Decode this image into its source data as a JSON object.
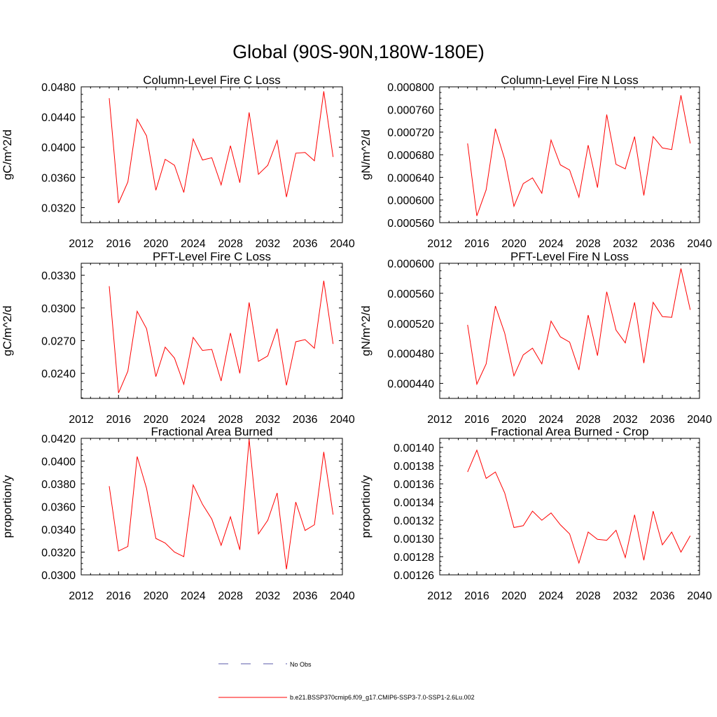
{
  "figure": {
    "title": "Global (90S-90N,180W-180E)"
  },
  "legend": {
    "items": [
      {
        "label": "No Obs",
        "color": "#5a5aa8",
        "style": "dashed"
      },
      {
        "label": "b.e21.BSSP370cmip6.f09_g17.CMIP6-SSP3-7.0-SSP1-2.6Lu.002",
        "color": "#ff0000",
        "style": "solid"
      }
    ]
  },
  "chart_data": [
    {
      "type": "line",
      "title": "Column-Level Fire C Loss",
      "xlabel": "",
      "ylabel": "gC/m^2/d",
      "xlim": [
        2012,
        2040
      ],
      "ylim": [
        0.03,
        0.048
      ],
      "xticks": [
        2012,
        2016,
        2020,
        2024,
        2028,
        2032,
        2036,
        2040
      ],
      "xtick_labels": [
        "2012",
        "2016",
        "2020",
        "2024",
        "2028",
        "2032",
        "2036",
        "2040"
      ],
      "yticks": [
        0.032,
        0.036,
        0.04,
        0.044,
        0.048
      ],
      "ytick_labels": [
        "0.0320",
        "0.0360",
        "0.0400",
        "0.0440",
        "0.0480"
      ],
      "series": [
        {
          "color": "#ff0000",
          "x": [
            2015,
            2016,
            2017,
            2018,
            2019,
            2020,
            2021,
            2022,
            2023,
            2024,
            2025,
            2026,
            2027,
            2028,
            2029,
            2030,
            2031,
            2032,
            2033,
            2034,
            2035,
            2036,
            2037,
            2038,
            2039
          ],
          "y": [
            0.0465,
            0.0326,
            0.0354,
            0.0437,
            0.0415,
            0.0343,
            0.0384,
            0.0376,
            0.034,
            0.0411,
            0.0383,
            0.0386,
            0.035,
            0.0402,
            0.0353,
            0.0446,
            0.0364,
            0.0376,
            0.0409,
            0.0334,
            0.0392,
            0.0393,
            0.0382,
            0.0474,
            0.0387
          ]
        }
      ]
    },
    {
      "type": "line",
      "title": "Column-Level Fire N Loss",
      "xlabel": "",
      "ylabel": "gN/m^2/d",
      "xlim": [
        2012,
        2040
      ],
      "ylim": [
        0.00056,
        0.0008
      ],
      "xticks": [
        2012,
        2016,
        2020,
        2024,
        2028,
        2032,
        2036,
        2040
      ],
      "xtick_labels": [
        "2012",
        "2016",
        "2020",
        "2024",
        "2028",
        "2032",
        "2036",
        "2040"
      ],
      "yticks": [
        0.00056,
        0.0006,
        0.00064,
        0.00068,
        0.00072,
        0.00076,
        0.0008
      ],
      "ytick_labels": [
        "0.000560",
        "0.000600",
        "0.000640",
        "0.000680",
        "0.000720",
        "0.000760",
        "0.000800"
      ],
      "series": [
        {
          "color": "#ff0000",
          "x": [
            2015,
            2016,
            2017,
            2018,
            2019,
            2020,
            2021,
            2022,
            2023,
            2024,
            2025,
            2026,
            2027,
            2028,
            2029,
            2030,
            2031,
            2032,
            2033,
            2034,
            2035,
            2036,
            2037,
            2038,
            2039
          ],
          "y": [
            0.0007,
            0.000572,
            0.000618,
            0.000726,
            0.000672,
            0.000589,
            0.000629,
            0.000639,
            0.000612,
            0.000706,
            0.000662,
            0.000653,
            0.000605,
            0.000697,
            0.000622,
            0.000751,
            0.000663,
            0.000655,
            0.000712,
            0.000608,
            0.000712,
            0.000692,
            0.000689,
            0.000785,
            0.0007
          ]
        }
      ]
    },
    {
      "type": "line",
      "title": "PFT-Level Fire C Loss",
      "xlabel": "",
      "ylabel": "gC/m^2/d",
      "xlim": [
        2012,
        2040
      ],
      "ylim": [
        0.0217,
        0.0341
      ],
      "xticks": [
        2012,
        2016,
        2020,
        2024,
        2028,
        2032,
        2036,
        2040
      ],
      "xtick_labels": [
        "2012",
        "2016",
        "2020",
        "2024",
        "2028",
        "2032",
        "2036",
        "2040"
      ],
      "yticks": [
        0.024,
        0.027,
        0.03,
        0.033
      ],
      "ytick_labels": [
        "0.0240",
        "0.0270",
        "0.0300",
        "0.0330"
      ],
      "series": [
        {
          "color": "#ff0000",
          "x": [
            2015,
            2016,
            2017,
            2018,
            2019,
            2020,
            2021,
            2022,
            2023,
            2024,
            2025,
            2026,
            2027,
            2028,
            2029,
            2030,
            2031,
            2032,
            2033,
            2034,
            2035,
            2036,
            2037,
            2038,
            2039
          ],
          "y": [
            0.032,
            0.0222,
            0.0242,
            0.0297,
            0.0281,
            0.0237,
            0.0264,
            0.0254,
            0.023,
            0.0273,
            0.0261,
            0.0262,
            0.0233,
            0.0277,
            0.024,
            0.0305,
            0.0251,
            0.0256,
            0.0281,
            0.0229,
            0.0269,
            0.0271,
            0.0263,
            0.0325,
            0.0267
          ]
        }
      ]
    },
    {
      "type": "line",
      "title": "PFT-Level Fire N Loss",
      "xlabel": "",
      "ylabel": "gN/m^2/d",
      "xlim": [
        2012,
        2040
      ],
      "ylim": [
        0.00042,
        0.0006
      ],
      "xticks": [
        2012,
        2016,
        2020,
        2024,
        2028,
        2032,
        2036,
        2040
      ],
      "xtick_labels": [
        "2012",
        "2016",
        "2020",
        "2024",
        "2028",
        "2032",
        "2036",
        "2040"
      ],
      "yticks": [
        0.00044,
        0.00048,
        0.00052,
        0.00056,
        0.0006
      ],
      "ytick_labels": [
        "0.000440",
        "0.000480",
        "0.000520",
        "0.000560",
        "0.000600"
      ],
      "series": [
        {
          "color": "#ff0000",
          "x": [
            2015,
            2016,
            2017,
            2018,
            2019,
            2020,
            2021,
            2022,
            2023,
            2024,
            2025,
            2026,
            2027,
            2028,
            2029,
            2030,
            2031,
            2032,
            2033,
            2034,
            2035,
            2036,
            2037,
            2038,
            2039
          ],
          "y": [
            0.000518,
            0.000439,
            0.000466,
            0.000543,
            0.000507,
            0.00045,
            0.000478,
            0.000487,
            0.000466,
            0.000523,
            0.000502,
            0.000495,
            0.000458,
            0.000531,
            0.000477,
            0.000562,
            0.000511,
            0.000494,
            0.000548,
            0.000467,
            0.000548,
            0.000529,
            0.000528,
            0.000593,
            0.000538
          ]
        }
      ]
    },
    {
      "type": "line",
      "title": "Fractional Area Burned",
      "xlabel": "",
      "ylabel": "proportion/y",
      "xlim": [
        2012,
        2040
      ],
      "ylim": [
        0.03,
        0.042
      ],
      "xticks": [
        2012,
        2016,
        2020,
        2024,
        2028,
        2032,
        2036,
        2040
      ],
      "xtick_labels": [
        "2012",
        "2016",
        "2020",
        "2024",
        "2028",
        "2032",
        "2036",
        "2040"
      ],
      "yticks": [
        0.03,
        0.032,
        0.034,
        0.036,
        0.038,
        0.04,
        0.042
      ],
      "ytick_labels": [
        "0.0300",
        "0.0320",
        "0.0340",
        "0.0360",
        "0.0380",
        "0.0400",
        "0.0420"
      ],
      "series": [
        {
          "color": "#ff0000",
          "x": [
            2015,
            2016,
            2017,
            2018,
            2019,
            2020,
            2021,
            2022,
            2023,
            2024,
            2025,
            2026,
            2027,
            2028,
            2029,
            2030,
            2031,
            2032,
            2033,
            2034,
            2035,
            2036,
            2037,
            2038,
            2039
          ],
          "y": [
            0.0378,
            0.0321,
            0.0325,
            0.0404,
            0.0376,
            0.0332,
            0.0328,
            0.032,
            0.0316,
            0.0379,
            0.0362,
            0.0349,
            0.0326,
            0.0351,
            0.0322,
            0.0419,
            0.0336,
            0.0348,
            0.0372,
            0.0305,
            0.0364,
            0.0339,
            0.0344,
            0.0408,
            0.0353
          ]
        }
      ]
    },
    {
      "type": "line",
      "title": "Fractional Area Burned - Crop",
      "xlabel": "",
      "ylabel": "proportion/y",
      "xlim": [
        2012,
        2040
      ],
      "ylim": [
        0.00126,
        0.00141
      ],
      "xticks": [
        2012,
        2016,
        2020,
        2024,
        2028,
        2032,
        2036,
        2040
      ],
      "xtick_labels": [
        "2012",
        "2016",
        "2020",
        "2024",
        "2028",
        "2032",
        "2036",
        "2040"
      ],
      "yticks": [
        0.00126,
        0.00128,
        0.0013,
        0.00132,
        0.00134,
        0.00136,
        0.00138,
        0.0014
      ],
      "ytick_labels": [
        "0.00126",
        "0.00128",
        "0.00130",
        "0.00132",
        "0.00134",
        "0.00136",
        "0.00138",
        "0.00140"
      ],
      "series": [
        {
          "color": "#ff0000",
          "x": [
            2015,
            2016,
            2017,
            2018,
            2019,
            2020,
            2021,
            2022,
            2023,
            2024,
            2025,
            2026,
            2027,
            2028,
            2029,
            2030,
            2031,
            2032,
            2033,
            2034,
            2035,
            2036,
            2037,
            2038,
            2039
          ],
          "y": [
            0.001373,
            0.001397,
            0.001366,
            0.001373,
            0.00135,
            0.001312,
            0.001314,
            0.00133,
            0.00132,
            0.001328,
            0.001315,
            0.001305,
            0.001273,
            0.001307,
            0.001299,
            0.001298,
            0.001309,
            0.001279,
            0.001326,
            0.001276,
            0.00133,
            0.001293,
            0.001307,
            0.001285,
            0.001303
          ]
        }
      ]
    }
  ]
}
